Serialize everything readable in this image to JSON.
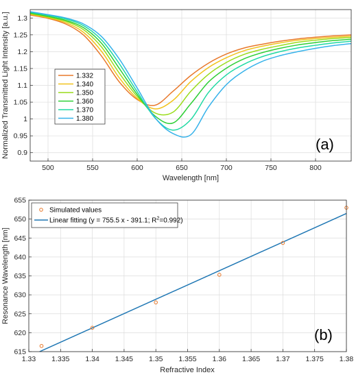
{
  "chart_data": [
    {
      "type": "line",
      "panel_label": "(a)",
      "xlabel": "Wavelength [nm]",
      "ylabel": "Normalized Transmitted Light Intensity [a.u.]",
      "xlim": [
        480,
        840
      ],
      "ylim": [
        0.875,
        1.325
      ],
      "xticks": [
        500,
        550,
        600,
        650,
        700,
        750,
        800
      ],
      "yticks": [
        0.9,
        0.95,
        1.0,
        1.05,
        1.1,
        1.15,
        1.2,
        1.25,
        1.3
      ],
      "ytick_labels": [
        "0.9",
        "0.95",
        "1",
        "1.05",
        "1.1",
        "1.15",
        "1.2",
        "1.25",
        "1.3"
      ],
      "grid": true,
      "legend_position": "middle-left",
      "x": [
        480,
        500,
        520,
        540,
        560,
        580,
        600,
        620,
        640,
        660,
        680,
        700,
        720,
        740,
        760,
        780,
        800,
        820,
        840
      ],
      "series": [
        {
          "name": "1.332",
          "color": "#e8782a",
          "values": [
            1.309,
            1.299,
            1.282,
            1.249,
            1.187,
            1.11,
            1.058,
            1.041,
            1.082,
            1.129,
            1.166,
            1.193,
            1.211,
            1.222,
            1.231,
            1.238,
            1.243,
            1.247,
            1.25
          ]
        },
        {
          "name": "1.340",
          "color": "#f1c21b",
          "values": [
            1.311,
            1.301,
            1.286,
            1.257,
            1.201,
            1.122,
            1.061,
            1.03,
            1.055,
            1.111,
            1.153,
            1.182,
            1.203,
            1.216,
            1.226,
            1.234,
            1.239,
            1.243,
            1.246
          ]
        },
        {
          "name": "1.350",
          "color": "#99dc1a",
          "values": [
            1.313,
            1.303,
            1.29,
            1.265,
            1.214,
            1.136,
            1.067,
            1.018,
            1.02,
            1.082,
            1.133,
            1.168,
            1.192,
            1.207,
            1.218,
            1.228,
            1.234,
            1.239,
            1.242
          ]
        },
        {
          "name": "1.360",
          "color": "#2ecf36",
          "values": [
            1.315,
            1.305,
            1.293,
            1.271,
            1.225,
            1.15,
            1.073,
            1.009,
            0.988,
            1.045,
            1.11,
            1.151,
            1.179,
            1.197,
            1.21,
            1.22,
            1.227,
            1.233,
            1.237
          ]
        },
        {
          "name": "1.370",
          "color": "#1fd9a3",
          "values": [
            1.317,
            1.308,
            1.297,
            1.277,
            1.235,
            1.164,
            1.081,
            1.003,
            0.967,
            0.998,
            1.079,
            1.131,
            1.163,
            1.185,
            1.2,
            1.211,
            1.219,
            1.226,
            1.231
          ]
        },
        {
          "name": "1.380",
          "color": "#35b2ea",
          "values": [
            1.319,
            1.31,
            1.3,
            1.282,
            1.245,
            1.178,
            1.092,
            1.004,
            0.957,
            0.953,
            1.036,
            1.102,
            1.143,
            1.171,
            1.188,
            1.2,
            1.21,
            1.218,
            1.224
          ]
        }
      ]
    },
    {
      "type": "scatter",
      "panel_label": "(b)",
      "xlabel": "Refractive Index",
      "ylabel": "Resonance Wavelength [nm]",
      "xlim": [
        1.33,
        1.38
      ],
      "ylim": [
        615,
        655
      ],
      "xticks": [
        1.33,
        1.335,
        1.34,
        1.345,
        1.35,
        1.355,
        1.36,
        1.365,
        1.37,
        1.375,
        1.38
      ],
      "yticks": [
        615,
        620,
        625,
        630,
        635,
        640,
        645,
        650,
        655
      ],
      "grid": true,
      "legend_position": "top-left",
      "series": [
        {
          "name": "Simulated values",
          "color": "#e8782a",
          "x": [
            1.332,
            1.34,
            1.35,
            1.36,
            1.37,
            1.38
          ],
          "y": [
            616.5,
            621.3,
            628.0,
            635.3,
            643.7,
            653.0
          ]
        },
        {
          "name": "Linear fitting (y = 755.5 x - 391.1; R",
          "name_superscript": "2",
          "name_suffix": "=0.992)",
          "color": "#1f77b4",
          "slope": 755.5,
          "intercept": -391.1
        }
      ]
    }
  ]
}
